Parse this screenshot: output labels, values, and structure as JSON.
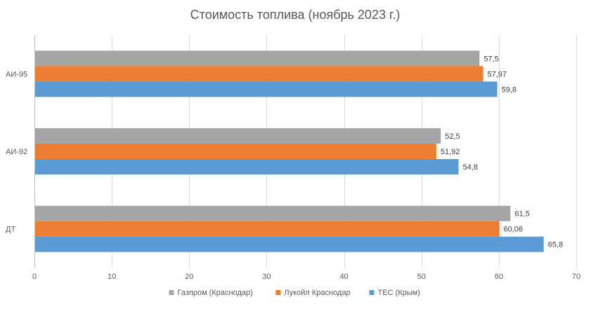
{
  "chart_data": {
    "type": "bar",
    "orientation": "horizontal",
    "title": "Стоимость топлива (ноябрь 2023 г.)",
    "categories": [
      "АИ-95",
      "АИ-92",
      "ДТ"
    ],
    "series": [
      {
        "name": "Газпром (Краснодар)",
        "color": "#a5a5a5",
        "values": [
          57.5,
          52.5,
          61.5
        ],
        "labels": [
          "57,5",
          "52,5",
          "61,5"
        ]
      },
      {
        "name": "Лукойл Краснодар",
        "color": "#ed7d31",
        "values": [
          57.97,
          51.92,
          60.06
        ],
        "labels": [
          "57,97",
          "51,92",
          "60,06"
        ]
      },
      {
        "name": "ТЕС (Крым)",
        "color": "#5b9bd5",
        "values": [
          59.8,
          54.8,
          65.8
        ],
        "labels": [
          "59,8",
          "54,8",
          "65,8"
        ]
      }
    ],
    "xlim": [
      0,
      70
    ],
    "xticks": [
      0,
      10,
      20,
      30,
      40,
      50,
      60,
      70
    ],
    "xlabel": "",
    "ylabel": "",
    "grid": true,
    "legend_position": "bottom"
  }
}
